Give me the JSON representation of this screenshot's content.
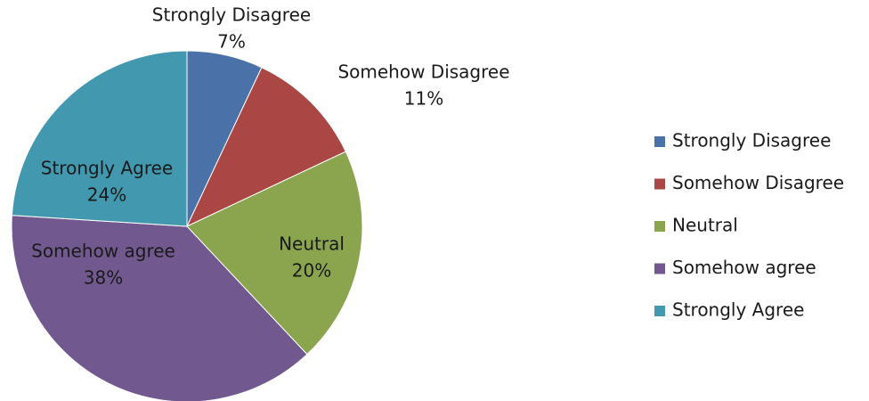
{
  "chart_data": {
    "type": "pie",
    "title": "",
    "legend_position": "right",
    "categories": [
      "Strongly Disagree",
      "Somehow Disagree",
      "Neutral",
      "Somehow agree",
      "Strongly Agree"
    ],
    "values": [
      7,
      11,
      20,
      38,
      24
    ],
    "value_labels": [
      "7%",
      "11%",
      "20%",
      "38%",
      "24%"
    ],
    "colors": [
      "#4A72A8",
      "#AA4744",
      "#8AA54D",
      "#71598F",
      "#4298AE"
    ]
  }
}
